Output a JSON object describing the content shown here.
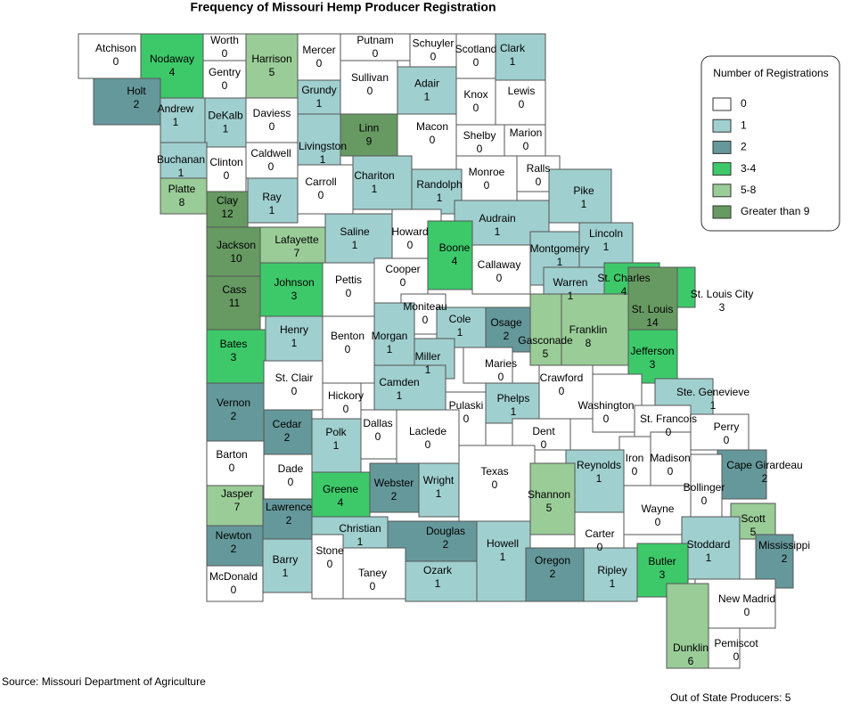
{
  "title": "Frequency of Missouri Hemp Producer Registration",
  "legend": {
    "title": "Number of Registrations",
    "classes": [
      {
        "label": "0",
        "color": "#ffffff"
      },
      {
        "label": "1",
        "color": "#a0cfcf"
      },
      {
        "label": "2",
        "color": "#65989a"
      },
      {
        "label": "3-4",
        "color": "#3dc96a"
      },
      {
        "label": "5-8",
        "color": "#9acc98"
      },
      {
        "label": "Greater than 9",
        "color": "#679a63"
      }
    ]
  },
  "counties": [
    {
      "name": "Atchison",
      "value": 0
    },
    {
      "name": "Nodaway",
      "value": 4
    },
    {
      "name": "Worth",
      "value": 0
    },
    {
      "name": "Gentry",
      "value": 0
    },
    {
      "name": "Harrison",
      "value": 5
    },
    {
      "name": "Mercer",
      "value": 0
    },
    {
      "name": "Putnam",
      "value": 0
    },
    {
      "name": "Schuyler",
      "value": 0
    },
    {
      "name": "Scotland",
      "value": 0
    },
    {
      "name": "Clark",
      "value": 1
    },
    {
      "name": "Sullivan",
      "value": 0
    },
    {
      "name": "Grundy",
      "value": 1
    },
    {
      "name": "Adair",
      "value": 1
    },
    {
      "name": "Knox",
      "value": 0
    },
    {
      "name": "Lewis",
      "value": 0
    },
    {
      "name": "Holt",
      "value": 2
    },
    {
      "name": "Andrew",
      "value": 1
    },
    {
      "name": "DeKalb",
      "value": 1
    },
    {
      "name": "Daviess",
      "value": 0
    },
    {
      "name": "Linn",
      "value": 9
    },
    {
      "name": "Livingston",
      "value": 1
    },
    {
      "name": "Macon",
      "value": 0
    },
    {
      "name": "Shelby",
      "value": 0
    },
    {
      "name": "Marion",
      "value": 0
    },
    {
      "name": "Buchanan",
      "value": 1
    },
    {
      "name": "Clinton",
      "value": 0
    },
    {
      "name": "Caldwell",
      "value": 0
    },
    {
      "name": "Chariton",
      "value": 1
    },
    {
      "name": "Carroll",
      "value": 0
    },
    {
      "name": "Monroe",
      "value": 0
    },
    {
      "name": "Ralls",
      "value": 0
    },
    {
      "name": "Platte",
      "value": 8
    },
    {
      "name": "Clay",
      "value": 12
    },
    {
      "name": "Ray",
      "value": 1
    },
    {
      "name": "Randolph",
      "value": 1
    },
    {
      "name": "Pike",
      "value": 1
    },
    {
      "name": "Audrain",
      "value": 1
    },
    {
      "name": "Howard",
      "value": 0
    },
    {
      "name": "Saline",
      "value": 1
    },
    {
      "name": "Lafayette",
      "value": 7
    },
    {
      "name": "Jackson",
      "value": 10
    },
    {
      "name": "Lincoln",
      "value": 1
    },
    {
      "name": "Montgomery",
      "value": 1
    },
    {
      "name": "Boone",
      "value": 4
    },
    {
      "name": "Callaway",
      "value": 0
    },
    {
      "name": "Cooper",
      "value": 0
    },
    {
      "name": "Johnson",
      "value": 3
    },
    {
      "name": "Cass",
      "value": 11
    },
    {
      "name": "Pettis",
      "value": 0
    },
    {
      "name": "St. Charles",
      "value": 4
    },
    {
      "name": "Warren",
      "value": 1
    },
    {
      "name": "Moniteau",
      "value": 0
    },
    {
      "name": "Cole",
      "value": 1
    },
    {
      "name": "Osage",
      "value": 2
    },
    {
      "name": "Gasconade",
      "value": 5
    },
    {
      "name": "Franklin",
      "value": 8
    },
    {
      "name": "St. Louis",
      "value": 14
    },
    {
      "name": "St. Louis City",
      "value": 3
    },
    {
      "name": "Jefferson",
      "value": 3
    },
    {
      "name": "Henry",
      "value": 1
    },
    {
      "name": "Bates",
      "value": 3
    },
    {
      "name": "Benton",
      "value": 0
    },
    {
      "name": "Morgan",
      "value": 1
    },
    {
      "name": "Miller",
      "value": 1
    },
    {
      "name": "Maries",
      "value": 0
    },
    {
      "name": "Phelps",
      "value": 1
    },
    {
      "name": "Crawford",
      "value": 0
    },
    {
      "name": "Washington",
      "value": 0
    },
    {
      "name": "Ste. Genevieve",
      "value": 1
    },
    {
      "name": "St. Francois",
      "value": 0
    },
    {
      "name": "Perry",
      "value": 0
    },
    {
      "name": "Vernon",
      "value": 2
    },
    {
      "name": "St. Clair",
      "value": 0
    },
    {
      "name": "Hickory",
      "value": 0
    },
    {
      "name": "Camden",
      "value": 1
    },
    {
      "name": "Pulaski",
      "value": 0
    },
    {
      "name": "Dallas",
      "value": 0
    },
    {
      "name": "Laclede",
      "value": 0
    },
    {
      "name": "Cedar",
      "value": 2
    },
    {
      "name": "Polk",
      "value": 1
    },
    {
      "name": "Barton",
      "value": 0
    },
    {
      "name": "Dade",
      "value": 0
    },
    {
      "name": "Dent",
      "value": 0
    },
    {
      "name": "Iron",
      "value": 0
    },
    {
      "name": "Madison",
      "value": 0
    },
    {
      "name": "Reynolds",
      "value": 1
    },
    {
      "name": "Texas",
      "value": 0
    },
    {
      "name": "Webster",
      "value": 2
    },
    {
      "name": "Wright",
      "value": 1
    },
    {
      "name": "Greene",
      "value": 4
    },
    {
      "name": "Jasper",
      "value": 7
    },
    {
      "name": "Lawrence",
      "value": 2
    },
    {
      "name": "Cape Girardeau",
      "value": 2
    },
    {
      "name": "Bollinger",
      "value": 0
    },
    {
      "name": "Wayne",
      "value": 0
    },
    {
      "name": "Shannon",
      "value": 5
    },
    {
      "name": "Scott",
      "value": 5
    },
    {
      "name": "Mississippi",
      "value": 2
    },
    {
      "name": "Stoddard",
      "value": 1
    },
    {
      "name": "Carter",
      "value": 0
    },
    {
      "name": "Newton",
      "value": 2
    },
    {
      "name": "Christian",
      "value": 1
    },
    {
      "name": "Douglas",
      "value": 2
    },
    {
      "name": "Howell",
      "value": 1
    },
    {
      "name": "Oregon",
      "value": 2
    },
    {
      "name": "Ripley",
      "value": 1
    },
    {
      "name": "Butler",
      "value": 3
    },
    {
      "name": "Barry",
      "value": 1
    },
    {
      "name": "Stone",
      "value": 0
    },
    {
      "name": "Taney",
      "value": 0
    },
    {
      "name": "Ozark",
      "value": 1
    },
    {
      "name": "McDonald",
      "value": 0
    },
    {
      "name": "New Madrid",
      "value": 0
    },
    {
      "name": "Dunklin",
      "value": 6
    },
    {
      "name": "Pemiscot",
      "value": 0
    }
  ],
  "source": "Source: Missouri Department of Agriculture",
  "note": "Out of State Producers: 5"
}
